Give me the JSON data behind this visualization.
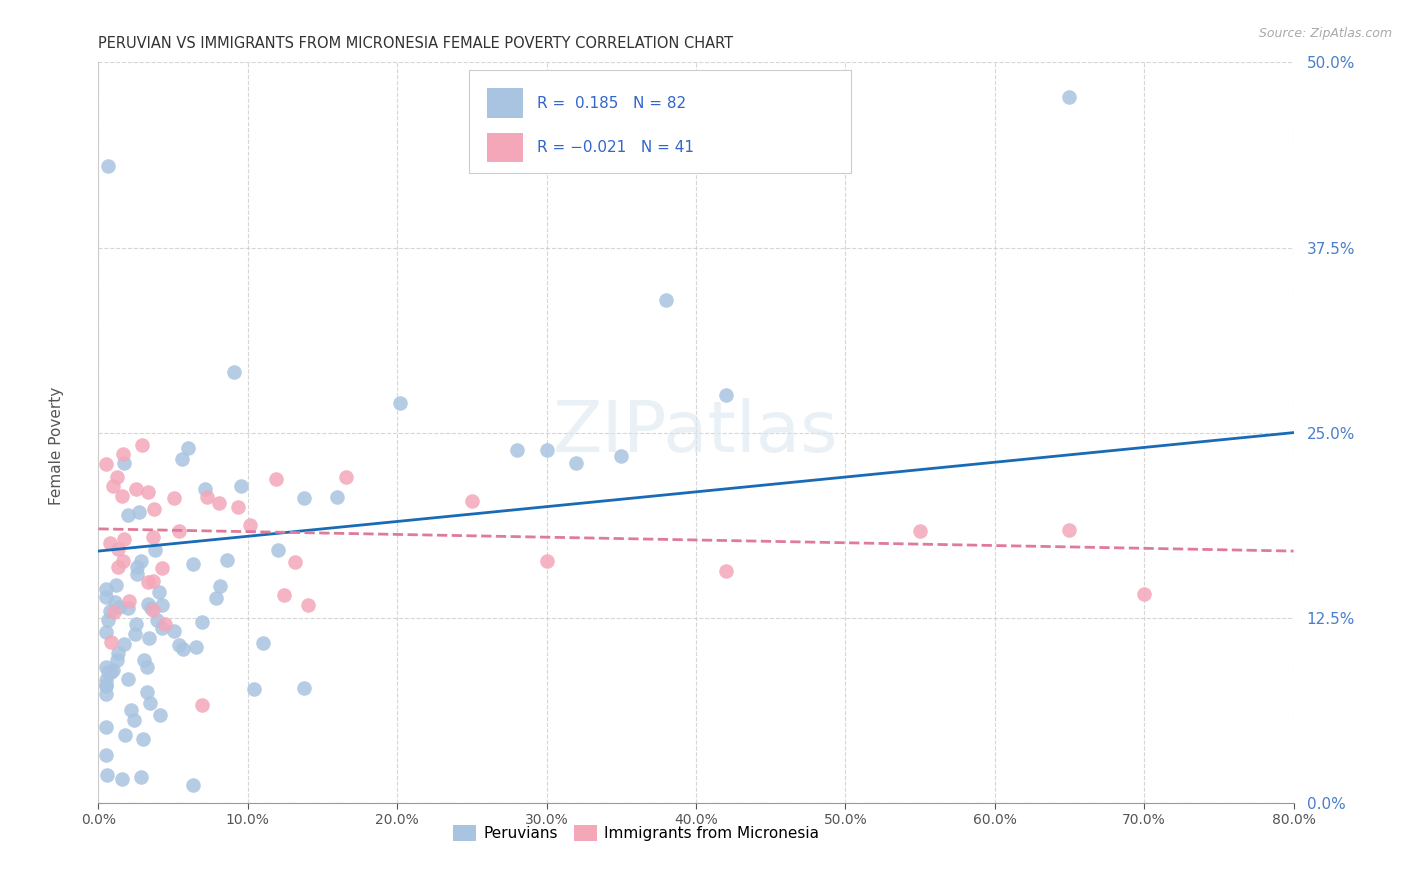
{
  "title": "PERUVIAN VS IMMIGRANTS FROM MICRONESIA FEMALE POVERTY CORRELATION CHART",
  "source": "Source: ZipAtlas.com",
  "ylabel": "Female Poverty",
  "xlim": [
    0.0,
    0.8
  ],
  "ylim": [
    0.0,
    0.5
  ],
  "legend_labels": [
    "Peruvians",
    "Immigrants from Micronesia"
  ],
  "peruvian_color": "#a8c4e0",
  "micronesia_color": "#f4a7b9",
  "peruvian_line_color": "#1a6bb5",
  "micronesia_line_color": "#e07a99",
  "R_peruvian": 0.185,
  "N_peruvian": 82,
  "R_micronesia": -0.021,
  "N_micronesia": 41,
  "watermark": "ZIPatlas",
  "grid_color": "#cccccc",
  "background_color": "#ffffff",
  "peruvian_line_y0": 0.17,
  "peruvian_line_y1": 0.25,
  "micronesia_line_y0": 0.185,
  "micronesia_line_y1": 0.17
}
